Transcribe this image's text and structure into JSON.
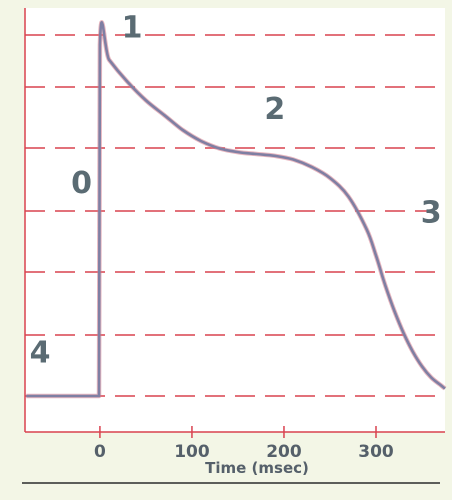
{
  "chart_data": {
    "type": "line",
    "title": "",
    "xlabel": "Time (msec)",
    "ylabel": "",
    "xlim": [
      -80,
      375
    ],
    "ylim": [
      -90,
      20
    ],
    "grid": true,
    "grid_style": "dashed-horizontal",
    "x_ticks": [
      0,
      100,
      200,
      300
    ],
    "x_tick_labels": [
      "0",
      "100",
      "200",
      "300"
    ],
    "colors": {
      "background": "#f3f6e6",
      "plot_background": "#ffffff",
      "grid": "#d9424f",
      "line": "#7f7fa3",
      "line_highlight": "#d47a8a",
      "labels": "#55606a"
    },
    "series": [
      {
        "x": [
          -80,
          -1,
          0,
          10,
          30,
          50,
          70,
          90,
          110,
          130,
          150,
          170,
          190,
          210,
          230,
          250,
          270,
          290,
          300,
          310,
          320,
          330,
          340,
          350,
          360,
          370,
          375
        ],
        "y": [
          -85,
          -85,
          10,
          6,
          0,
          -5,
          -9,
          -13,
          -16,
          -18,
          -19,
          -19.5,
          -20,
          -21,
          -23,
          -26,
          -31,
          -40,
          -47,
          -55,
          -62,
          -68,
          -73,
          -77,
          -80,
          -82,
          -83
        ]
      }
    ],
    "annotations": [
      {
        "text": "0",
        "x": -20,
        "y": -30
      },
      {
        "text": "1",
        "x": 35,
        "y": 12
      },
      {
        "text": "2",
        "x": 190,
        "y": -10
      },
      {
        "text": "3",
        "x": 360,
        "y": -38
      },
      {
        "text": "4",
        "x": -65,
        "y": -76
      }
    ]
  }
}
